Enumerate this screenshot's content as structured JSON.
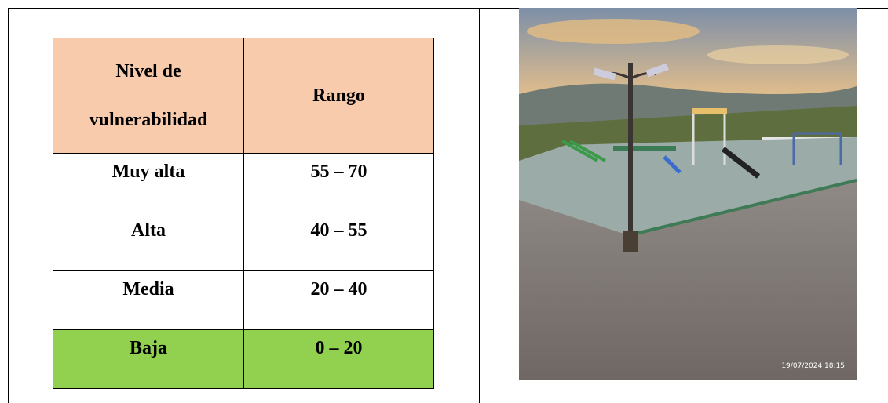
{
  "table": {
    "header": [
      "Nivel de vulnerabilidad",
      "Rango"
    ],
    "rows": [
      [
        "Muy alta",
        "55 – 70"
      ],
      [
        "Alta",
        "40 – 55"
      ],
      [
        "Media",
        "20 – 40"
      ],
      [
        "Baja",
        "0 – 20"
      ]
    ]
  },
  "photo": {
    "timestamp": "19/07/2024 18:15"
  }
}
